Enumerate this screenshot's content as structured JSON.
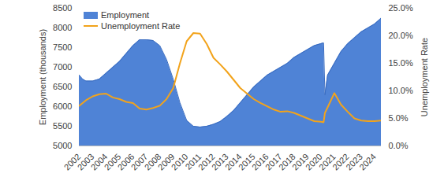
{
  "chart_data": {
    "type": "line",
    "ylabel": "Employment (thousands)",
    "y2label": "Unemployment Rate",
    "legend": "top-left",
    "x": [
      2002,
      2002.25,
      2002.5,
      2003,
      2003.5,
      2004,
      2004.5,
      2005,
      2005.5,
      2006,
      2006.5,
      2007,
      2007.5,
      2008,
      2008.5,
      2009,
      2009.5,
      2010,
      2010.5,
      2011,
      2011.5,
      2012,
      2012.5,
      2013,
      2013.5,
      2014,
      2014.5,
      2015,
      2015.5,
      2016,
      2016.5,
      2017,
      2017.5,
      2018,
      2018.5,
      2019,
      2019.5,
      2020,
      2020.2,
      2020.3,
      2020.5,
      2021,
      2021.5,
      2022,
      2022.5,
      2023,
      2023.5,
      2024,
      2024.5
    ],
    "series": [
      {
        "name": "Employment",
        "type": "area",
        "color": "#4f83d6",
        "values": [
          6800,
          6700,
          6650,
          6650,
          6700,
          6850,
          7000,
          7150,
          7350,
          7550,
          7700,
          7700,
          7680,
          7550,
          7200,
          6700,
          6100,
          5650,
          5500,
          5480,
          5500,
          5550,
          5620,
          5750,
          5900,
          6100,
          6300,
          6500,
          6650,
          6800,
          6900,
          7000,
          7100,
          7250,
          7350,
          7450,
          7550,
          7600,
          7620,
          6300,
          6800,
          7100,
          7400,
          7600,
          7750,
          7900,
          8000,
          8100,
          8250
        ]
      },
      {
        "name": "Unemployment Rate",
        "type": "line",
        "axis": "y2",
        "color": "#f2a31b",
        "values": [
          7.3,
          7.8,
          8.3,
          9.0,
          9.4,
          9.5,
          8.8,
          8.5,
          8.0,
          7.8,
          6.8,
          6.6,
          6.9,
          7.3,
          8.5,
          10.5,
          15.0,
          19.0,
          20.5,
          20.4,
          18.5,
          16.0,
          14.8,
          13.5,
          12.0,
          10.5,
          9.5,
          8.5,
          7.8,
          7.2,
          6.6,
          6.2,
          6.3,
          6.0,
          5.5,
          5.0,
          4.5,
          4.4,
          4.3,
          6.0,
          7.0,
          9.6,
          7.5,
          6.2,
          5.0,
          4.6,
          4.5,
          4.5,
          4.6
        ]
      }
    ],
    "xlim": [
      2002,
      2024.5
    ],
    "xticks": [
      2002,
      2003,
      2004,
      2005,
      2006,
      2007,
      2008,
      2009,
      2010,
      2011,
      2012,
      2013,
      2014,
      2015,
      2016,
      2017,
      2018,
      2019,
      2020,
      2021,
      2022,
      2023,
      2024
    ],
    "ylim": [
      5000,
      8500
    ],
    "yticks": [
      5000,
      5500,
      6000,
      6500,
      7000,
      7500,
      8000,
      8500
    ],
    "y2lim": [
      0,
      25
    ],
    "y2ticks": [
      {
        "value": 0,
        "label": "0.0%"
      },
      {
        "value": 5,
        "label": "5.0%"
      },
      {
        "value": 10,
        "label": "10.0%"
      },
      {
        "value": 15,
        "label": "15.0%"
      },
      {
        "value": 20,
        "label": "20.0%"
      },
      {
        "value": 25,
        "label": "25.0%"
      }
    ]
  }
}
